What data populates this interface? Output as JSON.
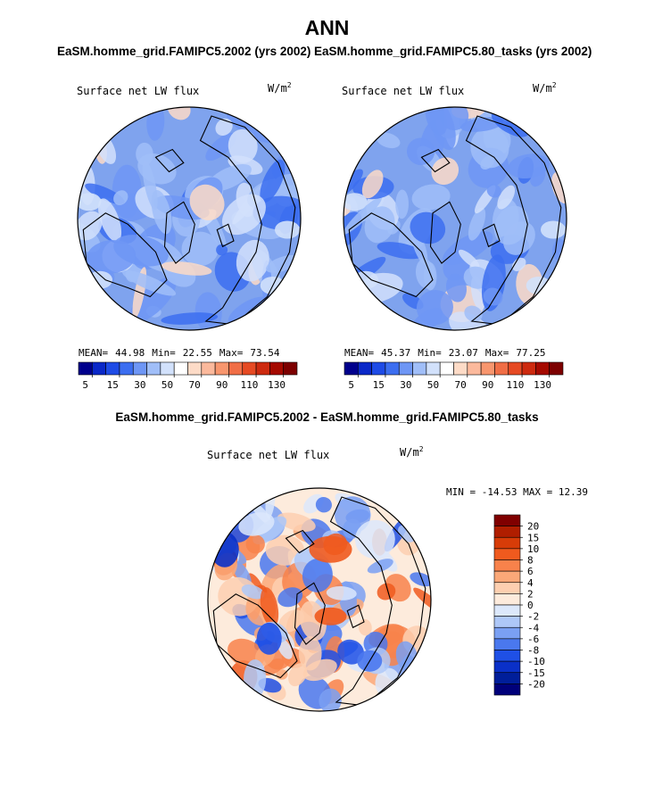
{
  "chart_data": [
    {
      "type": "heatmap",
      "projection": "north polar stereographic",
      "title": "EaSM.homme_grid.FAMIPC5.2002 (yrs 2002)",
      "variable": "Surface net LW flux",
      "units": "W/m",
      "units_exp": "2",
      "stats": {
        "mean_label": "MEAN=",
        "mean": "44.98",
        "min_label": "Min=",
        "min": "22.55",
        "max_label": "Max=",
        "max": "73.54"
      },
      "colorbar_ticks": [
        "5",
        "15",
        "30",
        "50",
        "70",
        "90",
        "110",
        "130"
      ]
    },
    {
      "type": "heatmap",
      "projection": "north polar stereographic",
      "title": "EaSM.homme_grid.FAMIPC5.80_tasks (yrs 2002)",
      "variable": "Surface net LW flux",
      "units": "W/m",
      "units_exp": "2",
      "stats": {
        "mean_label": "MEAN=",
        "mean": "45.37",
        "min_label": "Min=",
        "min": "23.07",
        "max_label": "Max=",
        "max": "77.25"
      },
      "colorbar_ticks": [
        "5",
        "15",
        "30",
        "50",
        "70",
        "90",
        "110",
        "130"
      ]
    },
    {
      "type": "heatmap",
      "projection": "north polar stereographic",
      "title": "EaSM.homme_grid.FAMIPC5.2002 - EaSM.homme_grid.FAMIPC5.80_tasks",
      "variable": "Surface net LW flux",
      "units": "W/m",
      "units_exp": "2",
      "stats_text": "MIN = -14.53 MAX =  12.39",
      "colorbar_ticks": [
        "20",
        "15",
        "10",
        "8",
        "6",
        "4",
        "2",
        "0",
        "-2",
        "-4",
        "-6",
        "-8",
        "-10",
        "-15",
        "-20"
      ]
    }
  ],
  "page_title": "ANN",
  "colors": {
    "abs_scale": [
      "#00008c",
      "#0a28c8",
      "#1e4be6",
      "#3c6ef0",
      "#6e96f5",
      "#a0bef8",
      "#d2e1fb",
      "#ffffff",
      "#fddbc7",
      "#fbb99c",
      "#f8966e",
      "#f06e46",
      "#e64a23",
      "#cd2a0f",
      "#a50a00",
      "#7d0000"
    ],
    "diff_scale": [
      "#800000",
      "#b01e00",
      "#d73c08",
      "#f05a1e",
      "#f8824b",
      "#fba878",
      "#fdcfb0",
      "#fdebdc",
      "#dce8fb",
      "#aec8f8",
      "#7aa0f3",
      "#4a78ee",
      "#1f50e6",
      "#0a30c8",
      "#001e9a",
      "#00007a"
    ],
    "ocean_abs": "#7fa3ee",
    "ocean_diff": "#fdebdc"
  }
}
